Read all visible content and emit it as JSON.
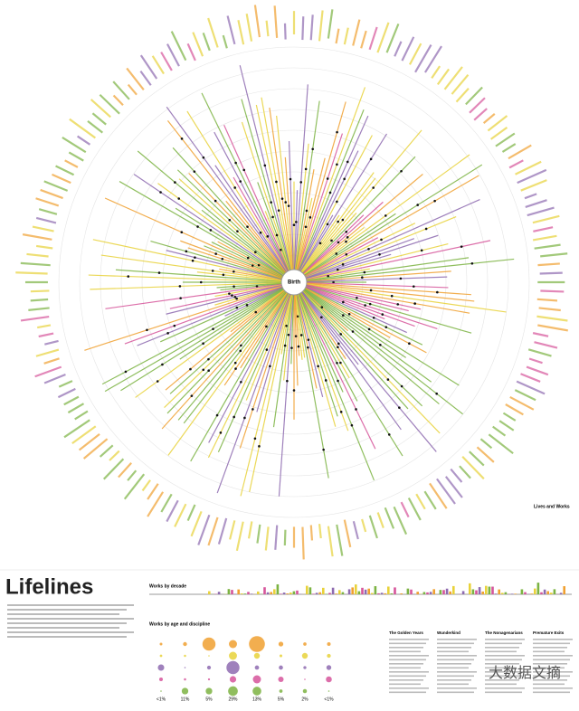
{
  "header": {
    "title": "Lifelines"
  },
  "center_label": "Birth",
  "corner_label": "Lives and Works",
  "sections": {
    "decade": "Works by decade",
    "age": "Works by age and discipline"
  },
  "shares": [
    "<1%",
    "11%",
    "5%",
    "29%",
    "13%",
    "5%",
    "2%",
    "<1%"
  ],
  "stories": [
    {
      "title": "The Golden Years"
    },
    {
      "title": "Wunderkind"
    },
    {
      "title": "The Nonagenarians"
    },
    {
      "title": "Premature Exits"
    }
  ],
  "watermark": "大数据文摘"
}
